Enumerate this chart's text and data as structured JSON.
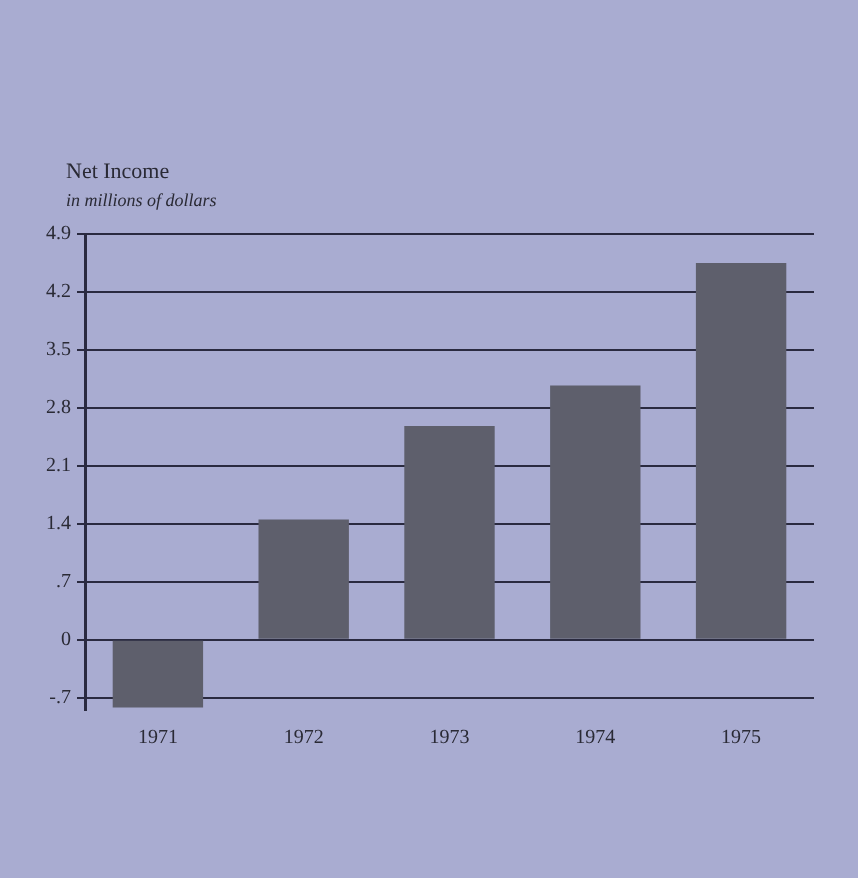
{
  "chart_data": {
    "type": "bar",
    "title": "Net Income",
    "subtitle": "in millions of dollars",
    "categories": [
      "1971",
      "1972",
      "1973",
      "1974",
      "1975"
    ],
    "values": [
      -0.82,
      1.45,
      2.58,
      3.07,
      4.55
    ],
    "color": "#5e5f6c",
    "ylim": [
      -0.85,
      4.9
    ],
    "yticks": [
      {
        "value": -0.7,
        "label": "-.7"
      },
      0,
      {
        "value": 0.7,
        "label": ".7"
      },
      1.4,
      2.1,
      2.8,
      3.5,
      4.2,
      4.9
    ],
    "grid": "y"
  }
}
